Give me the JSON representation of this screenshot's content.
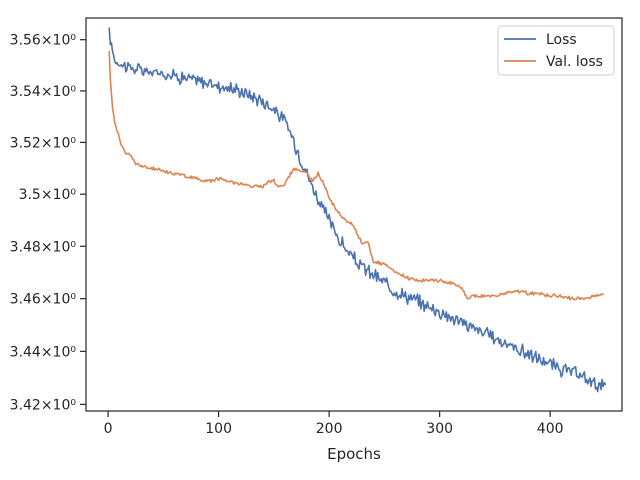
{
  "chart_data": {
    "type": "line",
    "title": "",
    "xlabel": "Epochs",
    "ylabel": "",
    "xlim": [
      -20,
      465
    ],
    "ylim": [
      3.4175,
      3.5685
    ],
    "y_scale": "log",
    "grid": false,
    "legend_position": "top-right",
    "x_ticks": [
      0,
      100,
      200,
      300,
      400
    ],
    "x_tick_labels": [
      "0",
      "100",
      "200",
      "300",
      "400"
    ],
    "y_ticks": [
      3.42,
      3.44,
      3.46,
      3.48,
      3.5,
      3.52,
      3.54,
      3.56
    ],
    "y_tick_labels": [
      "3.42×10⁰",
      "3.44×10⁰",
      "3.46×10⁰",
      "3.48×10⁰",
      "3.5×10⁰",
      "3.52×10⁰",
      "3.54×10⁰",
      "3.56×10⁰"
    ],
    "series": [
      {
        "name": "Loss",
        "color": "#4c72b0",
        "noise": 0.0028,
        "x": [
          1,
          3,
          6,
          10,
          15,
          20,
          30,
          40,
          50,
          60,
          70,
          80,
          90,
          100,
          110,
          120,
          130,
          140,
          150,
          160,
          165,
          170,
          175,
          180,
          185,
          190,
          195,
          200,
          205,
          210,
          215,
          220,
          225,
          230,
          240,
          250,
          260,
          270,
          280,
          290,
          300,
          310,
          320,
          330,
          340,
          350,
          360,
          370,
          380,
          390,
          400,
          410,
          420,
          430,
          440,
          450
        ],
        "values": [
          3.562,
          3.558,
          3.552,
          3.551,
          3.55,
          3.549,
          3.548,
          3.547,
          3.547,
          3.546,
          3.545,
          3.544,
          3.543,
          3.542,
          3.541,
          3.54,
          3.538,
          3.536,
          3.533,
          3.528,
          3.524,
          3.518,
          3.513,
          3.508,
          3.503,
          3.498,
          3.494,
          3.49,
          3.486,
          3.482,
          3.479,
          3.476,
          3.474,
          3.472,
          3.469,
          3.466,
          3.463,
          3.461,
          3.459,
          3.457,
          3.455,
          3.453,
          3.451,
          3.449,
          3.447,
          3.445,
          3.443,
          3.441,
          3.439,
          3.437,
          3.435,
          3.433,
          3.432,
          3.43,
          3.428,
          3.427
        ]
      },
      {
        "name": "Val. loss",
        "color": "#dd8452",
        "noise": 0.0007,
        "x": [
          1,
          2,
          4,
          6,
          8,
          10,
          13,
          16,
          20,
          25,
          30,
          35,
          40,
          50,
          60,
          70,
          80,
          90,
          100,
          110,
          120,
          130,
          140,
          145,
          150,
          155,
          160,
          165,
          170,
          175,
          180,
          185,
          190,
          195,
          200,
          205,
          210,
          215,
          220,
          225,
          230,
          235,
          240,
          250,
          260,
          270,
          280,
          290,
          300,
          310,
          320,
          325,
          330,
          340,
          350,
          360,
          370,
          380,
          390,
          400,
          410,
          420,
          430,
          440,
          448
        ],
        "values": [
          3.555,
          3.545,
          3.533,
          3.528,
          3.525,
          3.522,
          3.518,
          3.516,
          3.515,
          3.512,
          3.511,
          3.51,
          3.51,
          3.509,
          3.508,
          3.507,
          3.506,
          3.505,
          3.506,
          3.505,
          3.504,
          3.503,
          3.503,
          3.505,
          3.505,
          3.503,
          3.504,
          3.508,
          3.51,
          3.509,
          3.508,
          3.505,
          3.508,
          3.504,
          3.499,
          3.495,
          3.492,
          3.49,
          3.489,
          3.485,
          3.481,
          3.482,
          3.474,
          3.473,
          3.47,
          3.468,
          3.467,
          3.467,
          3.467,
          3.466,
          3.464,
          3.46,
          3.461,
          3.461,
          3.461,
          3.462,
          3.463,
          3.462,
          3.462,
          3.461,
          3.461,
          3.46,
          3.46,
          3.461,
          3.462
        ]
      }
    ]
  }
}
